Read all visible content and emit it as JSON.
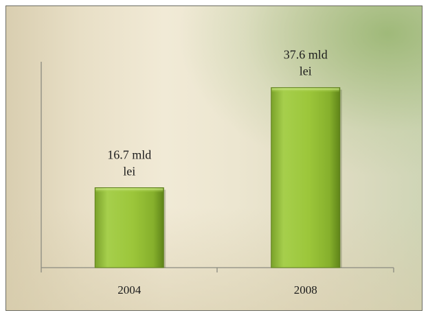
{
  "chart_data": {
    "type": "bar",
    "categories": [
      "2004",
      "2008"
    ],
    "values": [
      16.7,
      37.6
    ],
    "data_labels": [
      [
        "16.7 mld",
        "lei"
      ],
      [
        "37.6 mld",
        "lei"
      ]
    ],
    "title": "",
    "xlabel": "",
    "ylabel": "",
    "ylim": [
      0,
      43
    ],
    "grid": false,
    "bar_color": "#9cc63a"
  }
}
